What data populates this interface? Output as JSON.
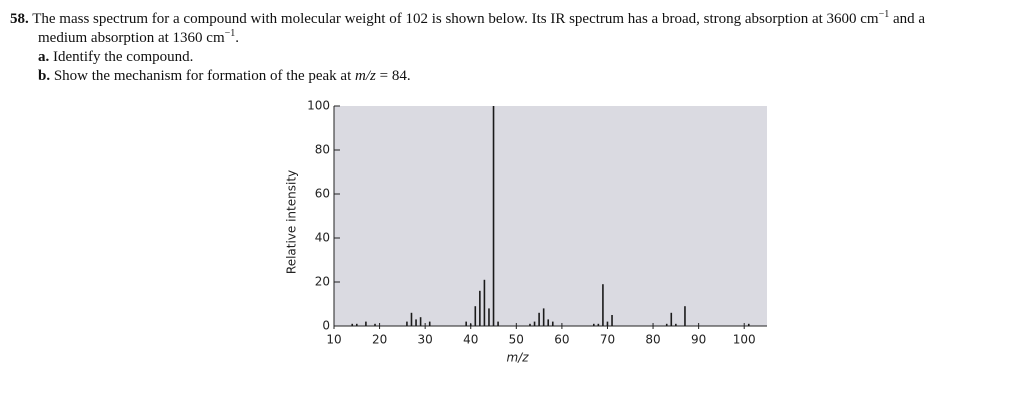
{
  "question": {
    "number": "58.",
    "line1": [
      "The mass spectrum for a compound with molecular weight of 102 is shown below. Its IR spectrum has a broad, strong absorption at 3600 cm",
      "−1",
      " and a"
    ],
    "line2": [
      "medium absorption at 1360 cm",
      "−1",
      "."
    ],
    "parts": [
      {
        "label": "a.",
        "text": [
          "Identify the compound."
        ]
      },
      {
        "label": "b.",
        "text": [
          "Show the mechanism for formation of the peak at ",
          "m/z",
          " = 84."
        ]
      }
    ]
  },
  "chart_data": {
    "type": "bar",
    "x": [
      14,
      15,
      17,
      19,
      26,
      27,
      28,
      29,
      31,
      39,
      40,
      41,
      42,
      43,
      44,
      45,
      46,
      53,
      54,
      55,
      56,
      57,
      58,
      67,
      68,
      69,
      70,
      71,
      83,
      84,
      85,
      87,
      101
    ],
    "values": [
      1,
      1,
      2,
      1,
      2,
      6,
      3,
      4,
      2,
      2,
      1,
      9,
      16,
      21,
      8,
      100,
      2,
      1,
      2,
      6,
      8,
      3,
      2,
      1,
      1,
      19,
      2,
      5,
      1,
      6,
      1,
      9,
      1
    ],
    "color": "#1a1a1a",
    "xlim": [
      10,
      105
    ],
    "xticks": [
      10,
      20,
      30,
      40,
      50,
      60,
      70,
      80,
      90,
      100
    ],
    "ylim": [
      0,
      100
    ],
    "yticks": [
      0,
      20,
      40,
      60,
      80,
      100
    ],
    "xlabel": "m/z",
    "ylabel": "Relative intensity",
    "background": "#dadae1",
    "grid": false
  }
}
